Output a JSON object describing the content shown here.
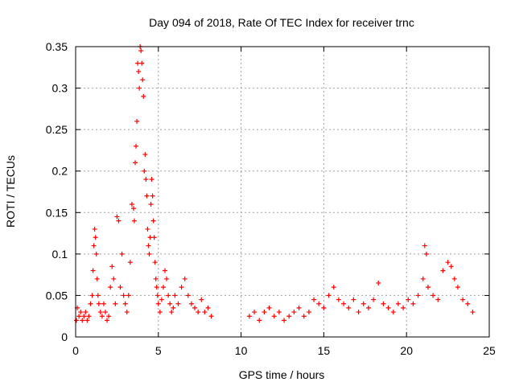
{
  "chart_data": {
    "type": "scatter",
    "title": "Day 094 of 2018, Rate Of TEC Index for receiver trnc",
    "xlabel": "GPS time / hours",
    "ylabel": "ROTI / TECUs",
    "xlim": [
      0,
      25
    ],
    "ylim": [
      0,
      0.35
    ],
    "xticks": [
      "0",
      "5",
      "10",
      "15",
      "20",
      "25"
    ],
    "yticks": [
      "0",
      "0.05",
      "0.1",
      "0.15",
      "0.2",
      "0.25",
      "0.3",
      "0.35"
    ],
    "grid": true,
    "marker": "+",
    "color": "#ff0000",
    "series": [
      {
        "x": [
          0.05,
          0.1,
          0.2,
          0.3,
          0.4,
          0.5,
          0.6,
          0.7,
          0.8,
          0.9,
          1.0,
          1.05,
          1.1,
          1.15,
          1.2,
          1.25,
          1.3,
          1.35,
          1.4,
          1.5,
          1.6,
          1.7,
          1.8,
          1.9,
          2.0,
          2.1,
          2.2,
          2.3,
          2.4,
          2.5,
          2.6,
          2.7,
          2.8,
          2.9,
          3.0,
          3.1,
          3.2,
          3.3,
          3.4,
          3.5,
          3.55,
          3.6,
          3.65,
          3.7,
          3.75,
          3.8,
          3.85,
          3.9,
          3.95,
          4.0,
          4.05,
          4.1,
          4.15,
          4.2,
          4.25,
          4.3,
          4.35,
          4.4,
          4.45,
          4.5,
          4.55,
          4.6,
          4.65,
          4.7,
          4.75,
          4.8,
          4.85,
          4.9,
          4.95,
          5.0,
          5.1,
          5.2,
          5.3,
          5.4,
          5.5,
          5.6,
          5.7,
          5.8,
          5.9,
          6.0,
          6.2,
          6.4,
          6.6,
          6.8,
          7.0,
          7.2,
          7.4,
          7.6,
          7.8,
          8.0,
          8.2
        ],
        "y": [
          0.02,
          0.035,
          0.025,
          0.03,
          0.02,
          0.025,
          0.03,
          0.02,
          0.025,
          0.04,
          0.05,
          0.08,
          0.11,
          0.13,
          0.12,
          0.1,
          0.07,
          0.05,
          0.04,
          0.03,
          0.025,
          0.04,
          0.03,
          0.02,
          0.025,
          0.06,
          0.085,
          0.07,
          0.04,
          0.145,
          0.14,
          0.06,
          0.1,
          0.05,
          0.04,
          0.03,
          0.05,
          0.09,
          0.16,
          0.155,
          0.14,
          0.21,
          0.23,
          0.26,
          0.33,
          0.32,
          0.3,
          0.35,
          0.345,
          0.33,
          0.31,
          0.29,
          0.2,
          0.22,
          0.19,
          0.17,
          0.13,
          0.11,
          0.1,
          0.12,
          0.16,
          0.19,
          0.17,
          0.14,
          0.12,
          0.09,
          0.07,
          0.06,
          0.05,
          0.04,
          0.03,
          0.045,
          0.06,
          0.08,
          0.07,
          0.05,
          0.04,
          0.03,
          0.035,
          0.05,
          0.04,
          0.06,
          0.07,
          0.05,
          0.04,
          0.035,
          0.03,
          0.045,
          0.03,
          0.035,
          0.025
        ]
      },
      {
        "x": [
          10.5,
          10.8,
          11.1,
          11.4,
          11.7,
          12.0,
          12.3,
          12.6,
          12.9,
          13.2,
          13.5,
          13.8,
          14.1,
          14.4,
          14.7,
          15.0,
          15.3,
          15.6,
          15.9,
          16.2,
          16.5,
          16.8,
          17.1,
          17.4,
          17.7,
          18.0,
          18.3,
          18.6,
          18.9,
          19.2,
          19.5,
          19.8,
          20.1,
          20.4,
          20.7,
          21.0,
          21.1,
          21.2,
          21.3,
          21.6,
          21.9,
          22.2,
          22.5,
          22.7,
          22.9,
          23.1,
          23.4,
          23.7,
          24.0
        ],
        "y": [
          0.025,
          0.03,
          0.02,
          0.03,
          0.035,
          0.025,
          0.03,
          0.02,
          0.025,
          0.03,
          0.035,
          0.025,
          0.03,
          0.045,
          0.04,
          0.035,
          0.05,
          0.06,
          0.045,
          0.04,
          0.035,
          0.045,
          0.03,
          0.04,
          0.035,
          0.045,
          0.065,
          0.04,
          0.035,
          0.03,
          0.04,
          0.035,
          0.045,
          0.04,
          0.05,
          0.07,
          0.11,
          0.1,
          0.06,
          0.05,
          0.045,
          0.08,
          0.09,
          0.085,
          0.07,
          0.06,
          0.045,
          0.04,
          0.03
        ]
      }
    ]
  }
}
